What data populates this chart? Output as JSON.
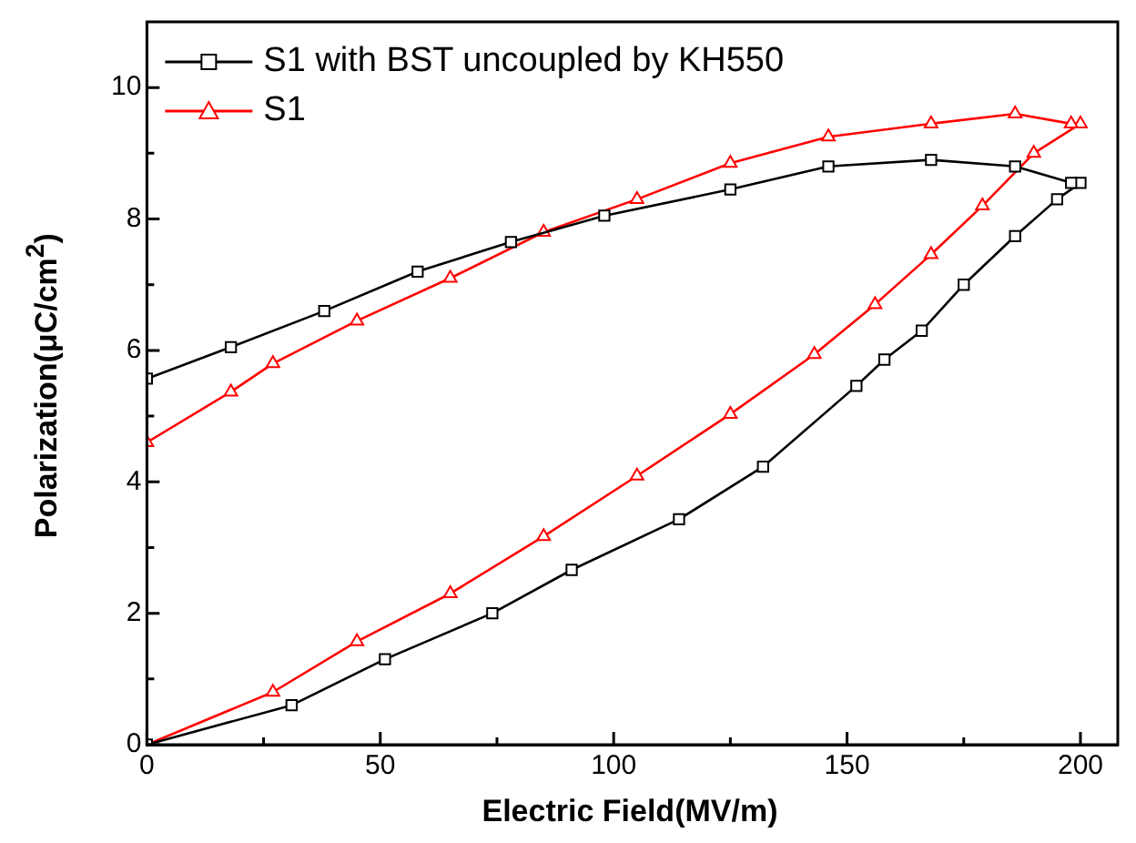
{
  "chart_data": {
    "type": "line",
    "xlabel": "Electric Field(MV/m)",
    "ylabel": "Polarization(μC/cm$^{2}$)",
    "xlim": [
      0,
      208
    ],
    "xticks": [
      0,
      {
        "value": 25,
        "label": null
      },
      50,
      {
        "value": 75,
        "label": null
      },
      100,
      {
        "value": 125,
        "label": null
      },
      150,
      {
        "value": 175,
        "label": null
      },
      200
    ],
    "ylim": [
      0,
      11
    ],
    "yticks": [
      0,
      {
        "value": 1,
        "label": null
      },
      2,
      {
        "value": 3,
        "label": null
      },
      4,
      {
        "value": 5,
        "label": null
      },
      6,
      {
        "value": 7,
        "label": null
      },
      8,
      {
        "value": 9,
        "label": null
      },
      10
    ],
    "grid": false,
    "legend": "top left",
    "line_style": "solid",
    "series": [
      {
        "name": "S1 with BST uncoupled by KH550",
        "color": "#000000",
        "marker": "square",
        "x": [
          0,
          31,
          51,
          74,
          91,
          114,
          132,
          152,
          158,
          166,
          175,
          186,
          195,
          200,
          198,
          186,
          168,
          146,
          125,
          98,
          78,
          58,
          38,
          18,
          0
        ],
        "values": [
          0,
          0.6,
          1.3,
          2.0,
          2.66,
          3.43,
          4.23,
          5.46,
          5.86,
          6.3,
          7.0,
          7.74,
          8.3,
          8.55,
          8.55,
          8.8,
          8.9,
          8.8,
          8.45,
          8.05,
          7.65,
          7.2,
          6.6,
          6.05,
          5.57
        ]
      },
      {
        "name": "S1",
        "color": "#ff0000",
        "marker": "triangle",
        "x": [
          0,
          27,
          45,
          65,
          85,
          105,
          125,
          143,
          156,
          168,
          179,
          190,
          200,
          198,
          186,
          168,
          146,
          125,
          105,
          85,
          65,
          45,
          27,
          18,
          0
        ],
        "values": [
          0,
          0.8,
          1.57,
          2.3,
          3.17,
          4.09,
          5.03,
          5.94,
          6.7,
          7.46,
          8.2,
          9.0,
          9.45,
          9.45,
          9.6,
          9.45,
          9.25,
          8.85,
          8.3,
          7.8,
          7.1,
          6.45,
          5.8,
          5.37,
          4.6
        ]
      }
    ]
  }
}
